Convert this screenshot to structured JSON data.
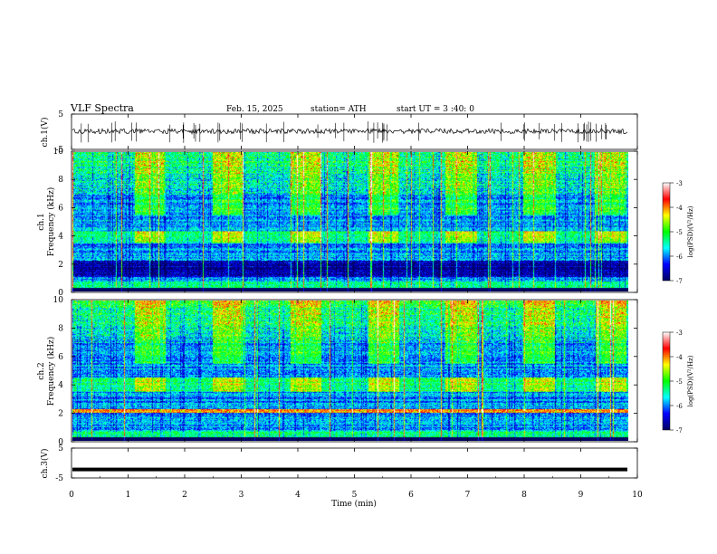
{
  "header": {
    "title": "VLF Spectra",
    "date": "Feb. 15, 2025",
    "station": "station= ATH",
    "start": "start UT =  3 :40: 0"
  },
  "colorbar": {
    "label": "log(PSD)(V²/Hz)",
    "ticks": [
      "-3",
      "-4",
      "-5",
      "-6",
      "-7"
    ],
    "colors": [
      "#ffffff",
      "#ff0000",
      "#ffff00",
      "#00ff00",
      "#00ffff",
      "#0000ff",
      "#000060"
    ]
  },
  "chart_data": [
    {
      "type": "line",
      "panel": "ch1-waveform",
      "ylabel": "ch.1(V)",
      "ylim": [
        -5,
        5
      ],
      "yticks": [
        "5",
        "-5"
      ],
      "xlim": [
        0,
        10
      ],
      "mean_value": 0,
      "description_values": "noisy waveform fluctuating roughly between -1 and 1 V with sferic spikes"
    },
    {
      "type": "heatmap",
      "panel": "ch1-spectrogram",
      "ylabel": "ch.1\nFrequency (kHz)",
      "ylim": [
        0,
        10
      ],
      "yticks": [
        "0",
        "2",
        "4",
        "6",
        "8",
        "10"
      ],
      "xlim": [
        0,
        10
      ],
      "zlim": [
        -7,
        -3
      ],
      "bursts_min": [
        1.4,
        2.8,
        4.2,
        5.6,
        7.0,
        8.4,
        9.7
      ],
      "transmitter_band_khz": [
        3.5,
        4.3
      ]
    },
    {
      "type": "heatmap",
      "panel": "ch2-spectrogram",
      "ylabel": "ch.2\nFrequency (kHz)",
      "ylim": [
        0,
        10
      ],
      "yticks": [
        "0",
        "2",
        "4",
        "6",
        "8",
        "10"
      ],
      "xlim": [
        0,
        10
      ],
      "zlim": [
        -7,
        -3
      ],
      "bursts_min": [
        1.4,
        2.8,
        4.2,
        5.6,
        7.0,
        8.4,
        9.7
      ],
      "transmitter_band_khz": [
        3.5,
        4.5
      ]
    },
    {
      "type": "line",
      "panel": "ch3-waveform",
      "ylabel": "ch.3(V)",
      "ylim": [
        -5,
        5
      ],
      "yticks": [
        "5",
        "-5"
      ],
      "xlim": [
        0,
        10
      ],
      "mean_value": -2.3
    }
  ],
  "xaxis": {
    "label": "Time (min)",
    "ticks": [
      "0",
      "1",
      "2",
      "3",
      "4",
      "5",
      "6",
      "7",
      "8",
      "9",
      "10"
    ]
  }
}
